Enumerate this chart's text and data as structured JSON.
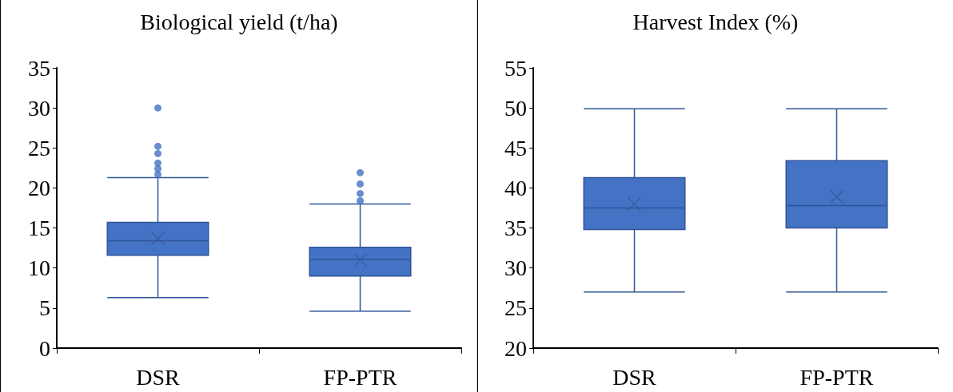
{
  "chart_data": [
    {
      "type": "box",
      "title": "Biological yield (t/ha)",
      "categories": [
        "DSR",
        "FP-PTR"
      ],
      "color": "#4472c4",
      "ylim": [
        0,
        35
      ],
      "yticks": [
        0,
        5,
        10,
        15,
        20,
        25,
        30,
        35
      ],
      "grid": false,
      "boxes": [
        {
          "low": 6.3,
          "q1": 11.6,
          "median": 13.4,
          "q3": 15.7,
          "high": 21.3,
          "mean": 13.7,
          "outliers": [
            21.7,
            22.4,
            23.1,
            24.3,
            25.2,
            30.0
          ]
        },
        {
          "low": 4.6,
          "q1": 9.0,
          "median": 11.1,
          "q3": 12.6,
          "high": 18.0,
          "mean": 11.0,
          "outliers": [
            18.4,
            19.3,
            20.5,
            21.9
          ]
        }
      ]
    },
    {
      "type": "box",
      "title": "Harvest Index (%)",
      "categories": [
        "DSR",
        "FP-PTR"
      ],
      "color": "#4472c4",
      "ylim": [
        20,
        55
      ],
      "yticks": [
        20,
        25,
        30,
        35,
        40,
        45,
        50,
        55
      ],
      "grid": false,
      "boxes": [
        {
          "low": 27.0,
          "q1": 34.8,
          "median": 37.5,
          "q3": 41.3,
          "high": 49.9,
          "mean": 38.0
        },
        {
          "low": 27.0,
          "q1": 35.0,
          "median": 37.8,
          "q3": 43.4,
          "high": 49.9,
          "mean": 38.9
        }
      ]
    }
  ]
}
